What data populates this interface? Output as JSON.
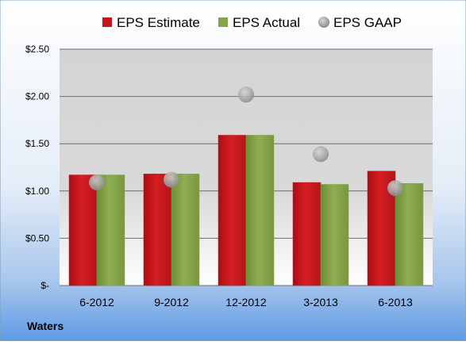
{
  "chart_data": {
    "type": "bar",
    "title": "",
    "footer_label": "Waters",
    "categories": [
      "6-2012",
      "9-2012",
      "12-2012",
      "3-2013",
      "6-2013"
    ],
    "series": [
      {
        "name": "EPS Estimate",
        "kind": "bar",
        "color": "#c8161b",
        "values": [
          1.17,
          1.18,
          1.59,
          1.09,
          1.21
        ]
      },
      {
        "name": "EPS Actual",
        "kind": "bar",
        "color": "#86a44a",
        "values": [
          1.17,
          1.18,
          1.59,
          1.07,
          1.08
        ]
      },
      {
        "name": "EPS GAAP",
        "kind": "marker",
        "color": "#a6a6a6",
        "values": [
          1.09,
          1.12,
          2.02,
          1.39,
          1.03
        ]
      }
    ],
    "y_ticks": [
      {
        "value": 0,
        "label": "$-"
      },
      {
        "value": 0.5,
        "label": "$0.50"
      },
      {
        "value": 1.0,
        "label": "$1.00"
      },
      {
        "value": 1.5,
        "label": "$1.50"
      },
      {
        "value": 2.0,
        "label": "$2.00"
      },
      {
        "value": 2.5,
        "label": "$2.50"
      }
    ],
    "ylim": [
      0,
      2.5
    ],
    "xlabel": "",
    "ylabel": "",
    "grid": true,
    "legend_position": "top"
  }
}
